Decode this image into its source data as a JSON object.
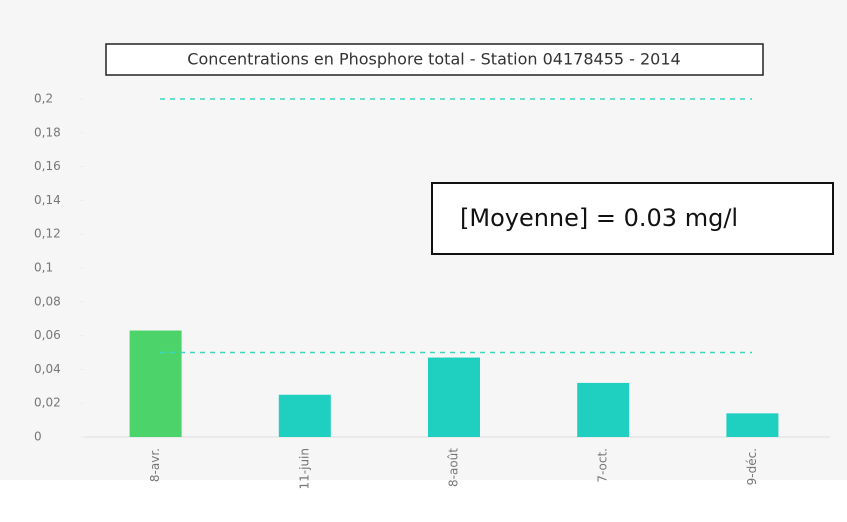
{
  "chart_data": {
    "type": "bar",
    "title": "Concentrations en Phosphore total - Station 04178455 - 2014",
    "annotation": "[Moyenne] = 0.03 mg/l",
    "categories": [
      "8-avr.",
      "11-juin",
      "8-août",
      "7-oct.",
      "9-déc."
    ],
    "values": [
      0.063,
      0.025,
      0.047,
      0.032,
      0.014
    ],
    "colors": [
      "#4cd46a",
      "#1fcfc0",
      "#1fcfc0",
      "#1fcfc0",
      "#1fcfc0"
    ],
    "ylim": [
      0,
      0.2
    ],
    "yticks": [
      0,
      {
        "value": 0.02,
        "label": "0,02"
      },
      {
        "value": 0.04,
        "label": "0,04"
      },
      {
        "value": 0.06,
        "label": "0,06"
      },
      {
        "value": 0.08,
        "label": "0,08"
      },
      {
        "value": 0.1,
        "label": "0,1"
      },
      {
        "value": 0.12,
        "label": "0,12"
      },
      {
        "value": 0.14,
        "label": "0,14"
      },
      {
        "value": 0.16,
        "label": "0,16"
      },
      {
        "value": 0.18,
        "label": "0,18"
      },
      {
        "value": 0.2,
        "label": "0,2"
      }
    ],
    "reference_lines": [
      0.2,
      0.05
    ],
    "reference_color": "#3dd6bf"
  }
}
